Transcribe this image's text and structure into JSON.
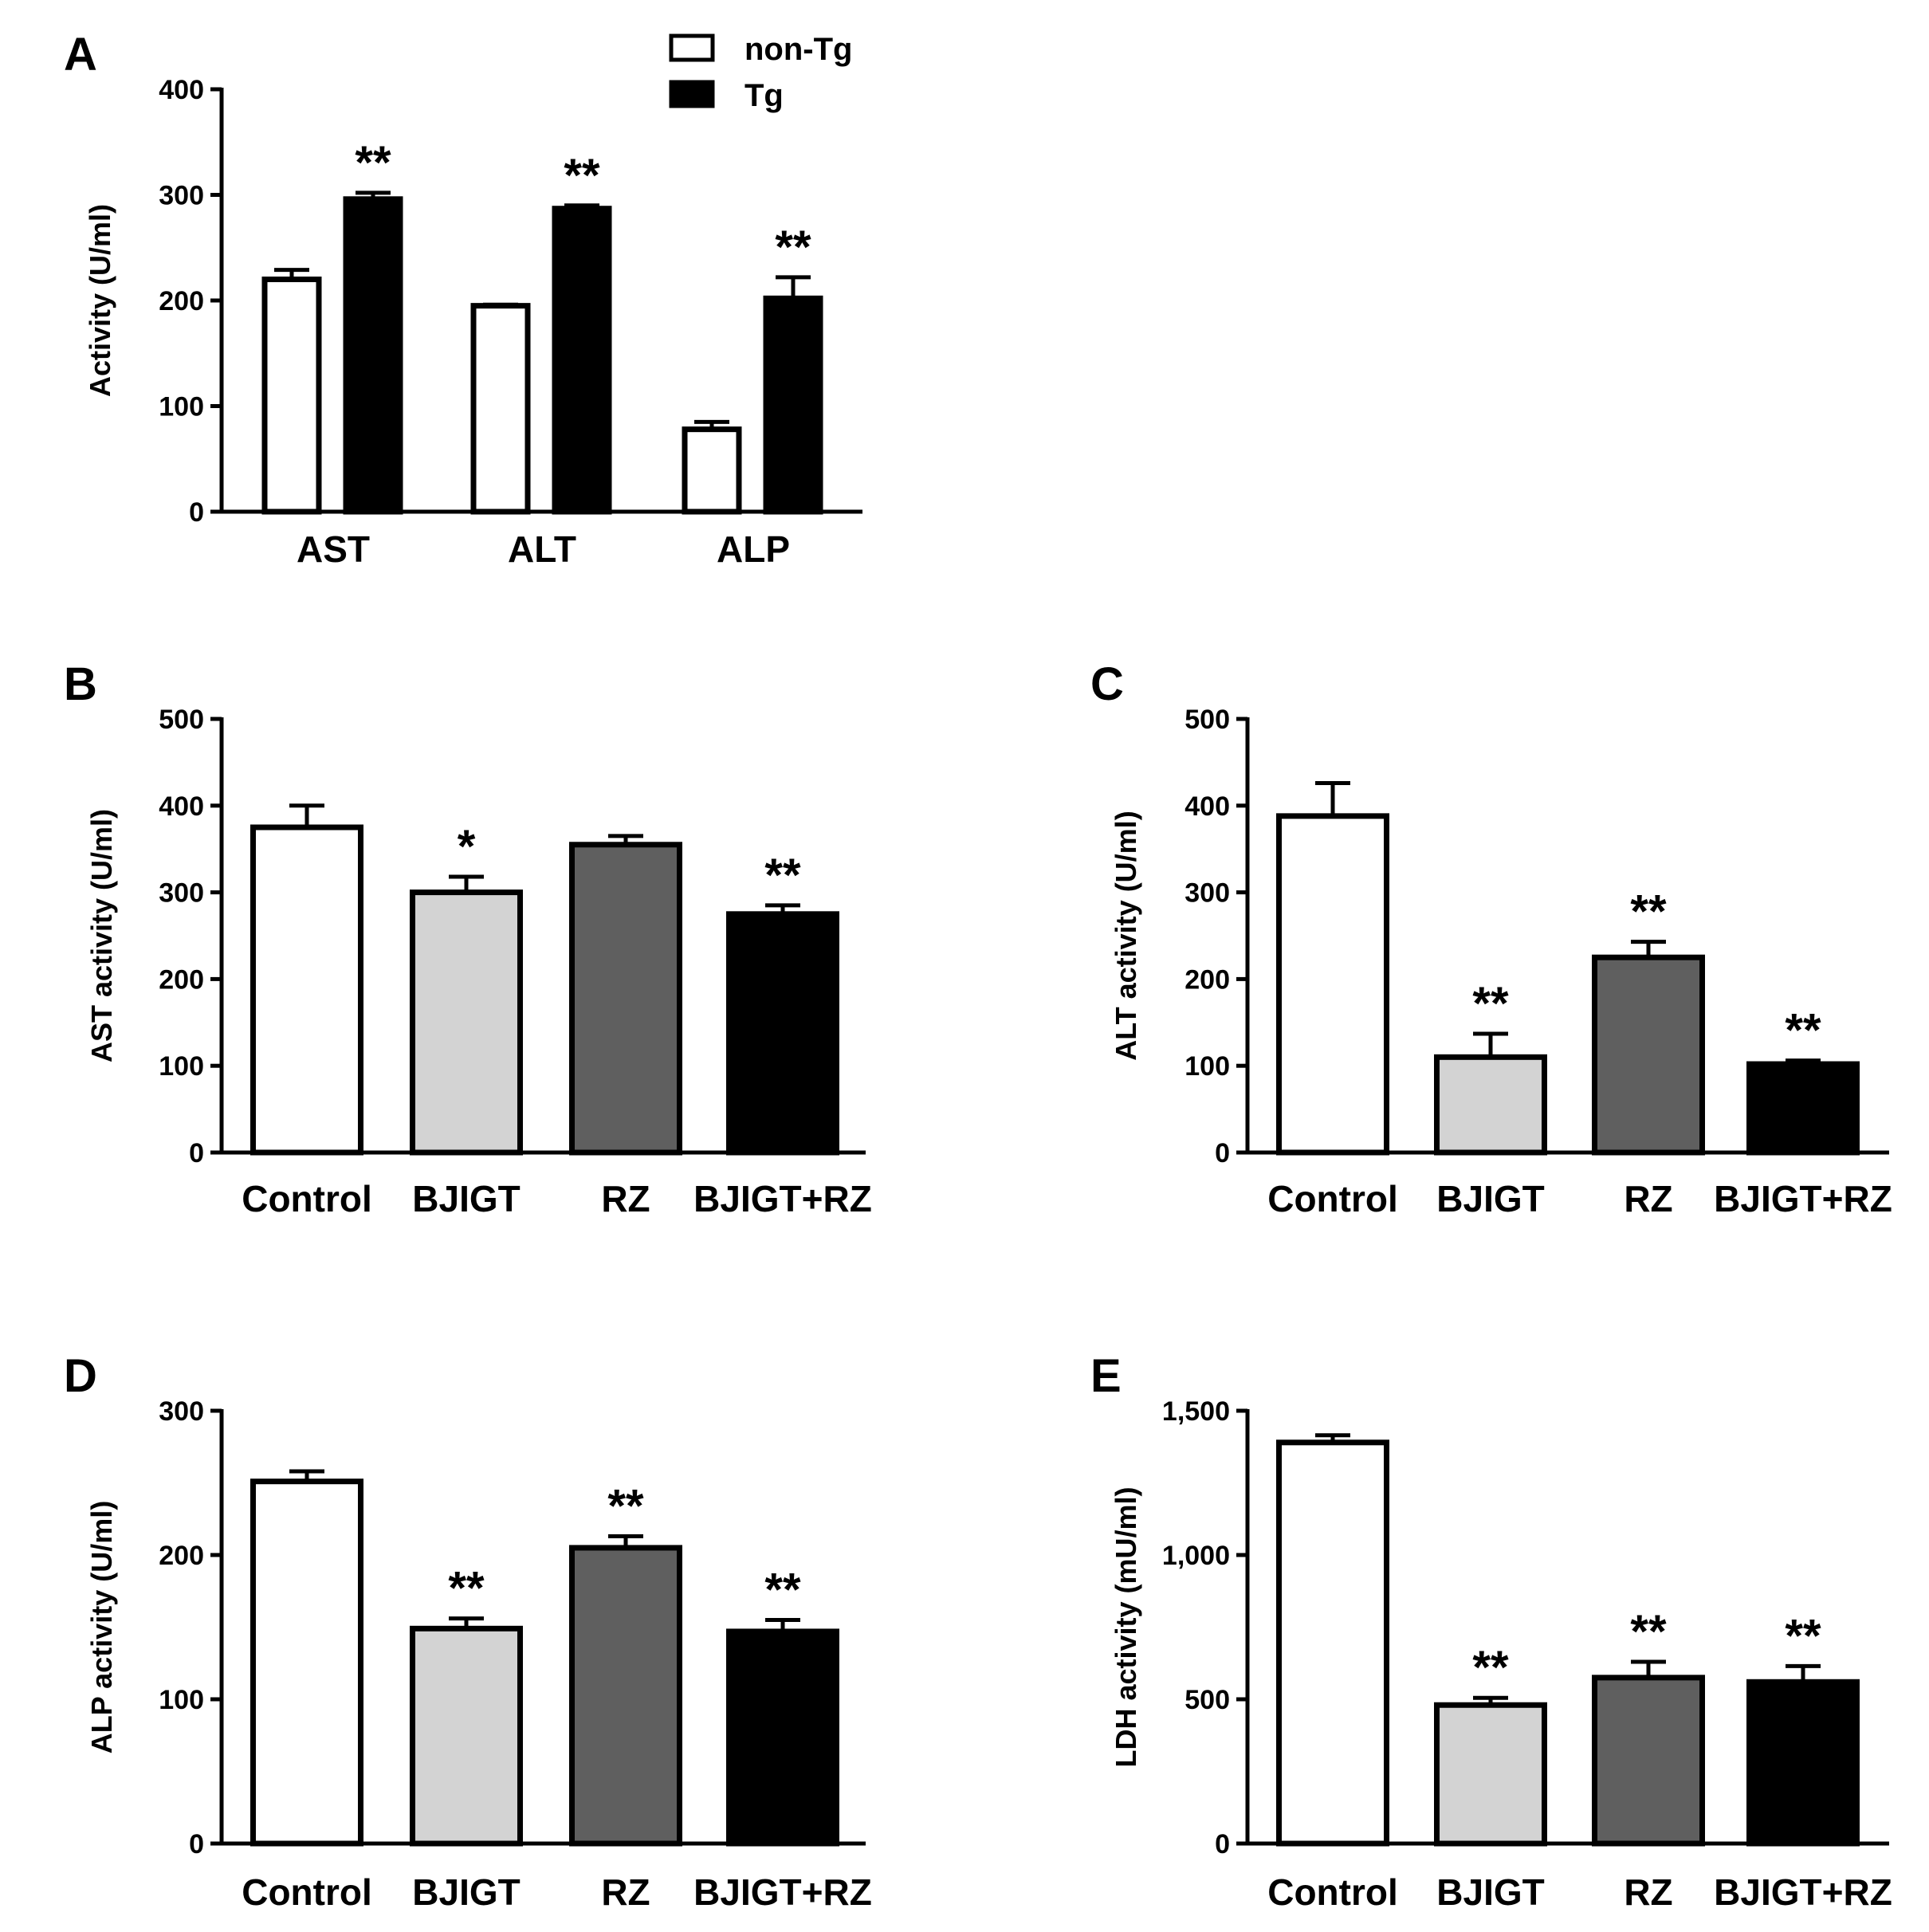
{
  "chart_data": [
    {
      "panel": "A",
      "type": "bar",
      "ylabel": "Activity (U/ml)",
      "ylim": [
        0,
        400
      ],
      "yticks": [
        "0",
        "100",
        "200",
        "300",
        "400"
      ],
      "categories": [
        "AST",
        "ALT",
        "ALP"
      ],
      "series": [
        {
          "name": "non-Tg",
          "color": "#ffffff",
          "values": [
            220,
            195,
            78
          ],
          "errors": [
            9,
            1,
            7
          ],
          "significance": [
            "",
            "",
            ""
          ]
        },
        {
          "name": "Tg",
          "color": "#000000",
          "values": [
            296,
            287,
            202
          ],
          "errors": [
            6,
            3,
            20
          ],
          "significance": [
            "**",
            "**",
            "**"
          ]
        }
      ],
      "legend": {
        "position": "top-right",
        "entries": [
          "non-Tg",
          "Tg"
        ]
      }
    },
    {
      "panel": "B",
      "type": "bar",
      "ylabel": "AST activity (U/ml)",
      "ylim": [
        0,
        500
      ],
      "yticks": [
        "0",
        "100",
        "200",
        "300",
        "400",
        "500"
      ],
      "categories": [
        "Control",
        "BJIGT",
        "RZ",
        "BJIGT+RZ"
      ],
      "colors": [
        "#ffffff",
        "#d3d3d3",
        "#5f5f5f",
        "#000000"
      ],
      "values": [
        375,
        300,
        355,
        275
      ],
      "errors": [
        25,
        18,
        10,
        10
      ],
      "significance": [
        "",
        "*",
        "",
        "**"
      ]
    },
    {
      "panel": "C",
      "type": "bar",
      "ylabel": "ALT activity (U/ml)",
      "ylim": [
        0,
        500
      ],
      "yticks": [
        "0",
        "100",
        "200",
        "300",
        "400",
        "500"
      ],
      "categories": [
        "Control",
        "BJIGT",
        "RZ",
        "BJIGT+RZ"
      ],
      "colors": [
        "#ffffff",
        "#d3d3d3",
        "#5f5f5f",
        "#000000"
      ],
      "values": [
        388,
        110,
        225,
        102
      ],
      "errors": [
        38,
        27,
        18,
        4
      ],
      "significance": [
        "",
        "**",
        "**",
        "**"
      ]
    },
    {
      "panel": "D",
      "type": "bar",
      "ylabel": "ALP activity (U/ml)",
      "ylim": [
        0,
        300
      ],
      "yticks": [
        "0",
        "100",
        "200",
        "300"
      ],
      "categories": [
        "Control",
        "BJIGT",
        "RZ",
        "BJIGT+RZ"
      ],
      "colors": [
        "#ffffff",
        "#d3d3d3",
        "#5f5f5f",
        "#000000"
      ],
      "values": [
        251,
        149,
        205,
        147
      ],
      "errors": [
        7,
        7,
        8,
        8
      ],
      "significance": [
        "",
        "**",
        "**",
        "**"
      ]
    },
    {
      "panel": "E",
      "type": "bar",
      "ylabel": "LDH activity (mU/ml)",
      "ylim": [
        0,
        1500
      ],
      "yticks": [
        "0",
        "500",
        "1,000",
        "1,500"
      ],
      "categories": [
        "Control",
        "BJIGT",
        "RZ",
        "BJIGT+RZ"
      ],
      "colors": [
        "#ffffff",
        "#d3d3d3",
        "#5f5f5f",
        "#000000"
      ],
      "values": [
        1390,
        480,
        575,
        560
      ],
      "errors": [
        25,
        25,
        55,
        55
      ],
      "significance": [
        "",
        "**",
        "**",
        "**"
      ]
    }
  ]
}
